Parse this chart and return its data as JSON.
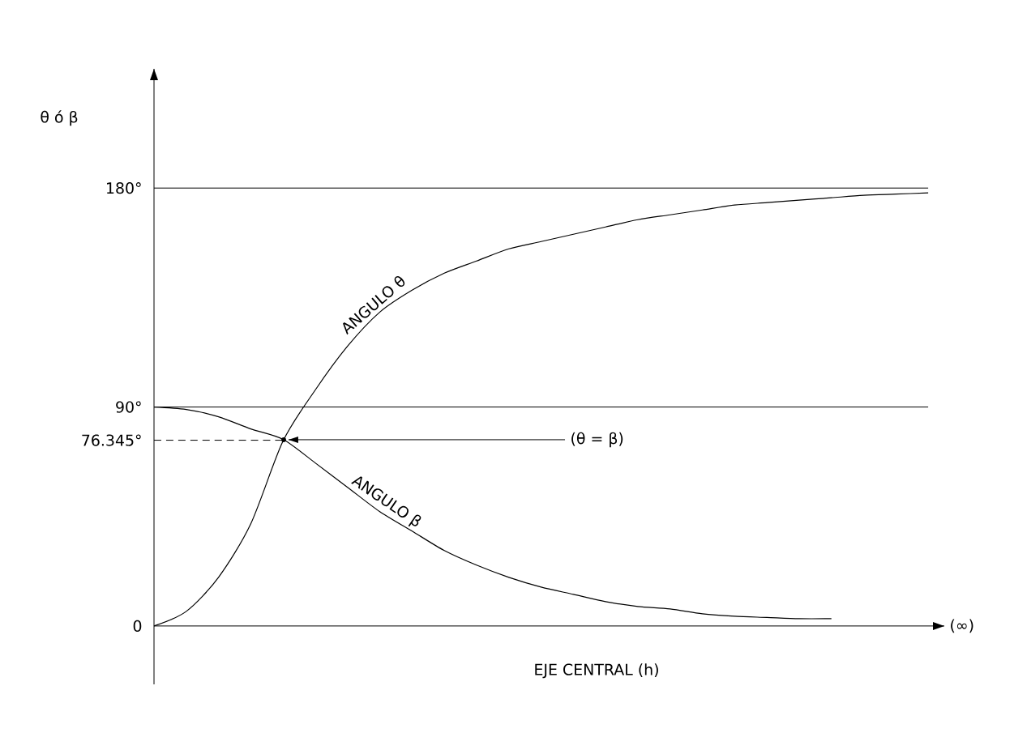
{
  "chart_data": {
    "type": "line",
    "ylabel": "θ ó β",
    "xlabel": "EJE CENTRAL   (h)",
    "categories": [
      null,
      null,
      null,
      null,
      null,
      null,
      null,
      null,
      null,
      null,
      null,
      null,
      null,
      null,
      null,
      null,
      null,
      null,
      null,
      null,
      null,
      null,
      null,
      null,
      null
    ],
    "series": [
      {
        "name": "ANGULO θ",
        "color": "#000000",
        "values": [
          0,
          6,
          20,
          42,
          76,
          97,
          115,
          129,
          138,
          145,
          150,
          155,
          158,
          161,
          164,
          167,
          169,
          171,
          173,
          174,
          175,
          176,
          177,
          177.5,
          178
        ]
      },
      {
        "name": "ANGULO β",
        "color": "#000000",
        "values": [
          90,
          89,
          86,
          81,
          76.7,
          67,
          57,
          47,
          39,
          31,
          25,
          20,
          16,
          13,
          10,
          8,
          7,
          5,
          4,
          3.5,
          3,
          3,
          null,
          null,
          null
        ]
      }
    ],
    "ylim": [
      -24,
      229
    ],
    "yticks": [
      0,
      {
        "value": 90,
        "label": "90°"
      },
      {
        "value": 180,
        "label": "180°"
      },
      {
        "value": 76.345,
        "label": "76.345°"
      }
    ],
    "ref_lines": [
      {
        "axis": "y",
        "value": 180,
        "color": "#000000",
        "line_style": "solid"
      },
      {
        "axis": "y",
        "value": 90,
        "color": "#000000",
        "line_style": "solid"
      },
      {
        "axis": "y",
        "value": 76.345,
        "color": "#000000",
        "line_style": "dashed"
      }
    ],
    "annotations": [
      "(θ = β)",
      "(∞)"
    ]
  }
}
